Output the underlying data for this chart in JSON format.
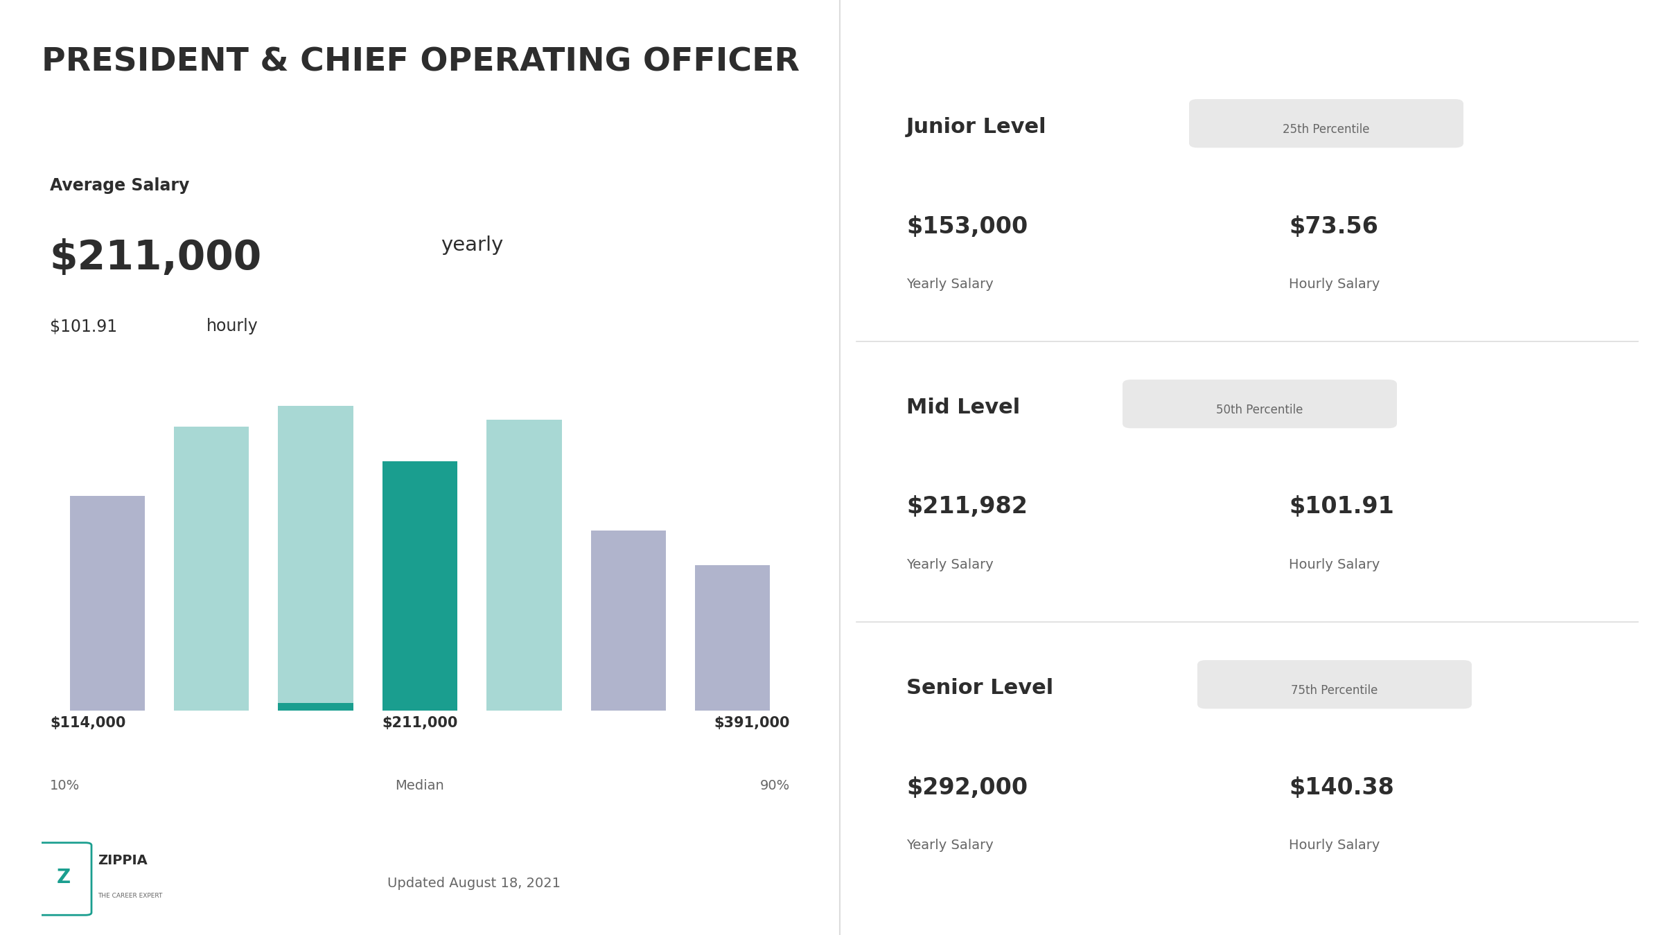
{
  "title": "PRESIDENT & CHIEF OPERATING OFFICER",
  "avg_salary_label": "Average Salary",
  "avg_salary_yearly": "$211,000",
  "avg_salary_yearly_suffix": "yearly",
  "avg_salary_hourly": "$101.91",
  "avg_salary_hourly_suffix": "hourly",
  "bar_values": [
    0.62,
    0.82,
    0.88,
    0.72,
    0.84,
    0.52,
    0.42
  ],
  "bar_colors": [
    "#b0b4cc",
    "#a8d8d4",
    "#a8d8d4",
    "#1a9e8f",
    "#a8d8d4",
    "#b0b4cc",
    "#b0b4cc"
  ],
  "left_label": "$114,000",
  "left_sublabel": "10%",
  "median_label": "$211,000",
  "median_sublabel": "Median",
  "right_label": "$391,000",
  "right_sublabel": "90%",
  "junior_level": "Junior Level",
  "junior_percentile": "25th Percentile",
  "junior_yearly": "$153,000",
  "junior_yearly_label": "Yearly Salary",
  "junior_hourly": "$73.56",
  "junior_hourly_label": "Hourly Salary",
  "mid_level": "Mid Level",
  "mid_percentile": "50th Percentile",
  "mid_yearly": "$211,982",
  "mid_yearly_label": "Yearly Salary",
  "mid_hourly": "$101.91",
  "mid_hourly_label": "Hourly Salary",
  "senior_level": "Senior Level",
  "senior_percentile": "75th Percentile",
  "senior_yearly": "$292,000",
  "senior_yearly_label": "Yearly Salary",
  "senior_hourly": "$140.38",
  "senior_hourly_label": "Hourly Salary",
  "updated_text": "Updated August 18, 2021",
  "zippia_text": "ZIPPIA",
  "zippia_sub": "THE CAREER EXPERT",
  "bg_color": "#ffffff",
  "text_dark": "#2d2d2d",
  "text_medium": "#666666",
  "badge_bg": "#e8e8e8",
  "teal_dark": "#1a9e8f",
  "divider_color": "#dddddd"
}
